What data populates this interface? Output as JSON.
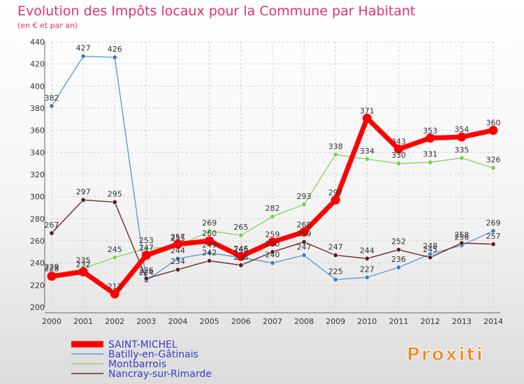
{
  "chart_data": {
    "type": "line",
    "title": "Evolution des Impôts locaux pour la Commune par Habitant",
    "subtitle": "(en € et par an)",
    "xlabel": "",
    "ylabel": "",
    "ylim": [
      200,
      440
    ],
    "yticks": [
      200,
      220,
      240,
      260,
      280,
      300,
      320,
      340,
      360,
      380,
      400,
      420,
      440
    ],
    "categories": [
      "2000",
      "2001",
      "2002",
      "2003",
      "2004",
      "2005",
      "2006",
      "2007",
      "2008",
      "2009",
      "2010",
      "2011",
      "2012",
      "2013",
      "2014"
    ],
    "grid": true,
    "legend_position": "bottom-left",
    "series": [
      {
        "name": "Batilly-en-Gâtinais",
        "color": "#5b9bd5",
        "marker": "#3a7fc1",
        "values": [
          382,
          427,
          426,
          224,
          244,
          249,
          245,
          240,
          247,
          225,
          227,
          236,
          248,
          256,
          269
        ]
      },
      {
        "name": "Montbarrois",
        "color": "#8cd36a",
        "marker": "#7acc4f",
        "values": [
          229,
          235,
          245,
          253,
          255,
          269,
          265,
          282,
          293,
          338,
          334,
          330,
          331,
          335,
          326
        ]
      },
      {
        "name": "Nancray-sur-Rimarde",
        "color": "#6b2a2a",
        "marker": "#5a1f1f",
        "values": [
          267,
          297,
          295,
          226,
          234,
          242,
          238,
          250,
          259,
          247,
          244,
          252,
          245,
          258,
          257
        ]
      },
      {
        "name": "SAINT-MICHEL",
        "color": "#ff0000",
        "marker": "#ff0000",
        "values": [
          228,
          232,
          212,
          247,
          257,
          260,
          246,
          259,
          268,
          297,
          371,
          343,
          353,
          354,
          360
        ]
      }
    ],
    "legend_order": [
      "SAINT-MICHEL",
      "Batilly-en-Gâtinais",
      "Montbarrois",
      "Nancray-sur-Rimarde"
    ],
    "label_color": "#333333",
    "title_color": "#e0306f",
    "legend_text_color": "#3a3ac8"
  },
  "logo": {
    "text": "Proxiti"
  }
}
